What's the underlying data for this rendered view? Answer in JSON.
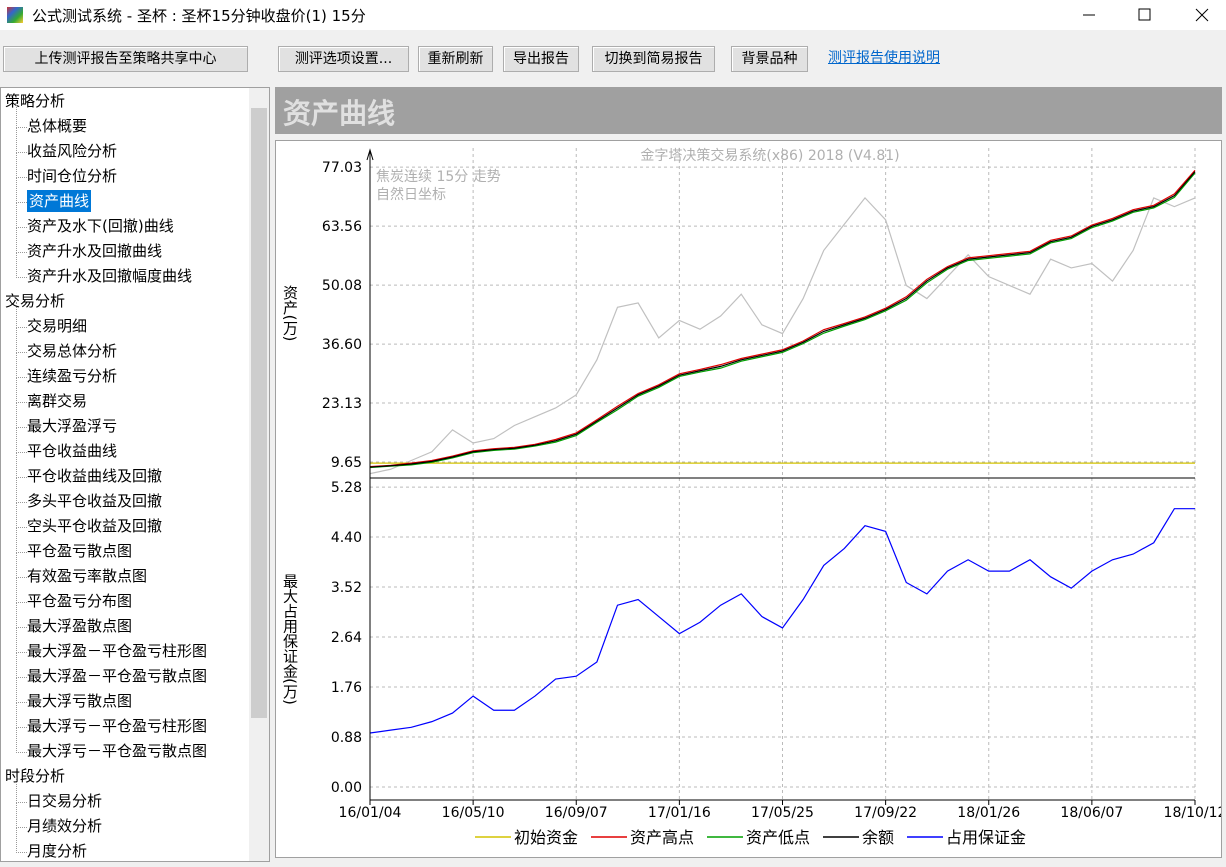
{
  "window": {
    "title": "公式测试系统 - 圣杯 : 圣杯15分钟收盘价(1) 15分"
  },
  "toolbar": {
    "upload": "上传测评报告至策略共享中心",
    "options": "测评选项设置...",
    "refresh": "重新刷新",
    "export": "导出报告",
    "switch": "切换到简易报告",
    "background": "背景品种",
    "help_link": "测评报告使用说明"
  },
  "tree": [
    {
      "label": "策略分析",
      "children": [
        "总体概要",
        "收益风险分析",
        "时间仓位分析",
        "资产曲线",
        "资产及水下(回撤)曲线",
        "资产升水及回撤曲线",
        "资产升水及回撤幅度曲线"
      ]
    },
    {
      "label": "交易分析",
      "children": [
        "交易明细",
        "交易总体分析",
        "连续盈亏分析",
        "离群交易",
        "最大浮盈浮亏",
        "平仓收益曲线",
        "平仓收益曲线及回撤",
        "多头平仓收益及回撤",
        "空头平仓收益及回撤",
        "平仓盈亏散点图",
        "有效盈亏率散点图",
        "平仓盈亏分布图",
        "最大浮盈散点图",
        "最大浮盈－平仓盈亏柱形图",
        "最大浮盈－平仓盈亏散点图",
        "最大浮亏散点图",
        "最大浮亏－平仓盈亏柱形图",
        "最大浮亏－平仓盈亏散点图"
      ]
    },
    {
      "label": "时段分析",
      "children": [
        "日交易分析",
        "月绩效分析",
        "月度分析"
      ]
    }
  ],
  "panel_title": "资产曲线",
  "chart_data": [
    {
      "type": "line",
      "title": "金字塔决策交易系统(x86) 2018 (V4.81)",
      "annotations": [
        "焦炭连续 15分 走势",
        "自然日坐标"
      ],
      "y_label": "资产(万)",
      "ylim": [
        6.0,
        81.4
      ],
      "yticks": [
        9.65,
        23.13,
        {
          "value": 36.6,
          "label": "36.60"
        },
        50.08,
        63.56,
        77.03
      ],
      "grid": true,
      "series": [
        {
          "color": "#c0c0c0",
          "values": [
            7,
            8,
            10,
            12,
            17,
            14,
            15,
            18,
            20,
            22,
            25,
            33,
            45,
            46,
            38,
            42,
            40,
            43,
            48,
            41,
            39,
            47,
            58,
            64,
            70,
            65,
            50,
            47,
            52,
            57,
            52,
            50,
            48,
            56,
            54,
            55,
            51,
            58,
            70,
            68,
            70
          ]
        },
        {
          "name": "初始资金",
          "color": "#d4c400",
          "values": [
            9.4,
            9.4,
            9.4,
            9.4,
            9.4,
            9.4,
            9.4,
            9.4,
            9.4,
            9.4,
            9.4,
            9.4,
            9.4,
            9.4,
            9.4,
            9.4,
            9.4,
            9.4,
            9.4,
            9.4,
            9.4,
            9.4,
            9.4,
            9.4,
            9.4,
            9.4,
            9.4,
            9.4,
            9.4,
            9.4,
            9.4,
            9.4,
            9.4,
            9.4,
            9.4,
            9.4,
            9.4,
            9.4,
            9.4,
            9.4,
            9.4
          ]
        },
        {
          "name": "资产高点",
          "color": "#e00000",
          "values": [
            8.6,
            8.9,
            9.4,
            10.0,
            11.0,
            12.2,
            12.7,
            13.0,
            13.7,
            14.8,
            16.3,
            19.3,
            22.4,
            25.3,
            27.3,
            29.8,
            30.8,
            31.9,
            33.3,
            34.3,
            35.3,
            37.3,
            39.9,
            41.3,
            42.8,
            44.8,
            47.4,
            51.4,
            54.3,
            56.3,
            56.8,
            57.3,
            57.8,
            60.3,
            61.3,
            63.8,
            65.3,
            67.3,
            68.3,
            70.9,
            76.3
          ]
        },
        {
          "name": "资产低点",
          "color": "#00a000",
          "values": [
            8.4,
            8.7,
            9.0,
            9.6,
            10.6,
            11.8,
            12.3,
            12.6,
            13.3,
            14.2,
            15.7,
            18.7,
            21.6,
            24.7,
            26.7,
            29.2,
            30.2,
            31.1,
            32.7,
            33.7,
            34.7,
            36.7,
            39.1,
            40.7,
            42.2,
            44.2,
            46.6,
            50.6,
            53.7,
            55.7,
            56.2,
            56.7,
            57.2,
            59.7,
            60.7,
            63.2,
            64.7,
            66.7,
            67.7,
            70.1,
            75.7
          ]
        },
        {
          "name": "余额",
          "color": "#000000",
          "values": [
            8.5,
            8.8,
            9.2,
            9.8,
            10.8,
            12.0,
            12.5,
            12.8,
            13.5,
            14.5,
            16.0,
            19,
            22,
            25,
            27,
            29.5,
            30.5,
            31.5,
            33,
            34,
            35,
            37,
            39.5,
            41,
            42.5,
            44.5,
            47,
            51,
            54,
            56,
            56.5,
            57,
            57.5,
            60,
            61,
            63.5,
            65,
            67,
            68,
            70.5,
            76
          ]
        }
      ]
    },
    {
      "type": "line",
      "y_label": "最大占用保证金(万)",
      "ylim": [
        -0.23,
        5.44
      ],
      "yticks": [
        {
          "value": 0,
          "label": "0.00"
        },
        0.88,
        1.76,
        2.64,
        3.52,
        {
          "value": 4.4,
          "label": "4.40"
        },
        5.28
      ],
      "grid": true,
      "categories": [
        "16/01/04",
        null,
        null,
        null,
        null,
        "16/05/10",
        null,
        null,
        null,
        null,
        "16/09/07",
        null,
        null,
        null,
        null,
        "17/01/16",
        null,
        null,
        null,
        null,
        "17/05/25",
        null,
        null,
        null,
        null,
        "17/09/22",
        null,
        null,
        null,
        null,
        "18/01/26",
        null,
        null,
        null,
        null,
        "18/06/07",
        null,
        null,
        null,
        null,
        "18/10/12"
      ],
      "series": [
        {
          "name": "占用保证金",
          "color": "#0000ff",
          "values": [
            0.95,
            1.0,
            1.05,
            1.15,
            1.3,
            1.6,
            1.35,
            1.35,
            1.6,
            1.9,
            1.95,
            2.2,
            3.2,
            3.3,
            3.0,
            2.7,
            2.9,
            3.2,
            3.4,
            3.0,
            2.8,
            3.3,
            3.9,
            4.2,
            4.6,
            4.5,
            3.6,
            3.4,
            3.8,
            4.0,
            3.8,
            3.8,
            4.0,
            3.7,
            3.5,
            3.8,
            4.0,
            4.1,
            4.3,
            4.9,
            4.9
          ]
        }
      ]
    }
  ]
}
